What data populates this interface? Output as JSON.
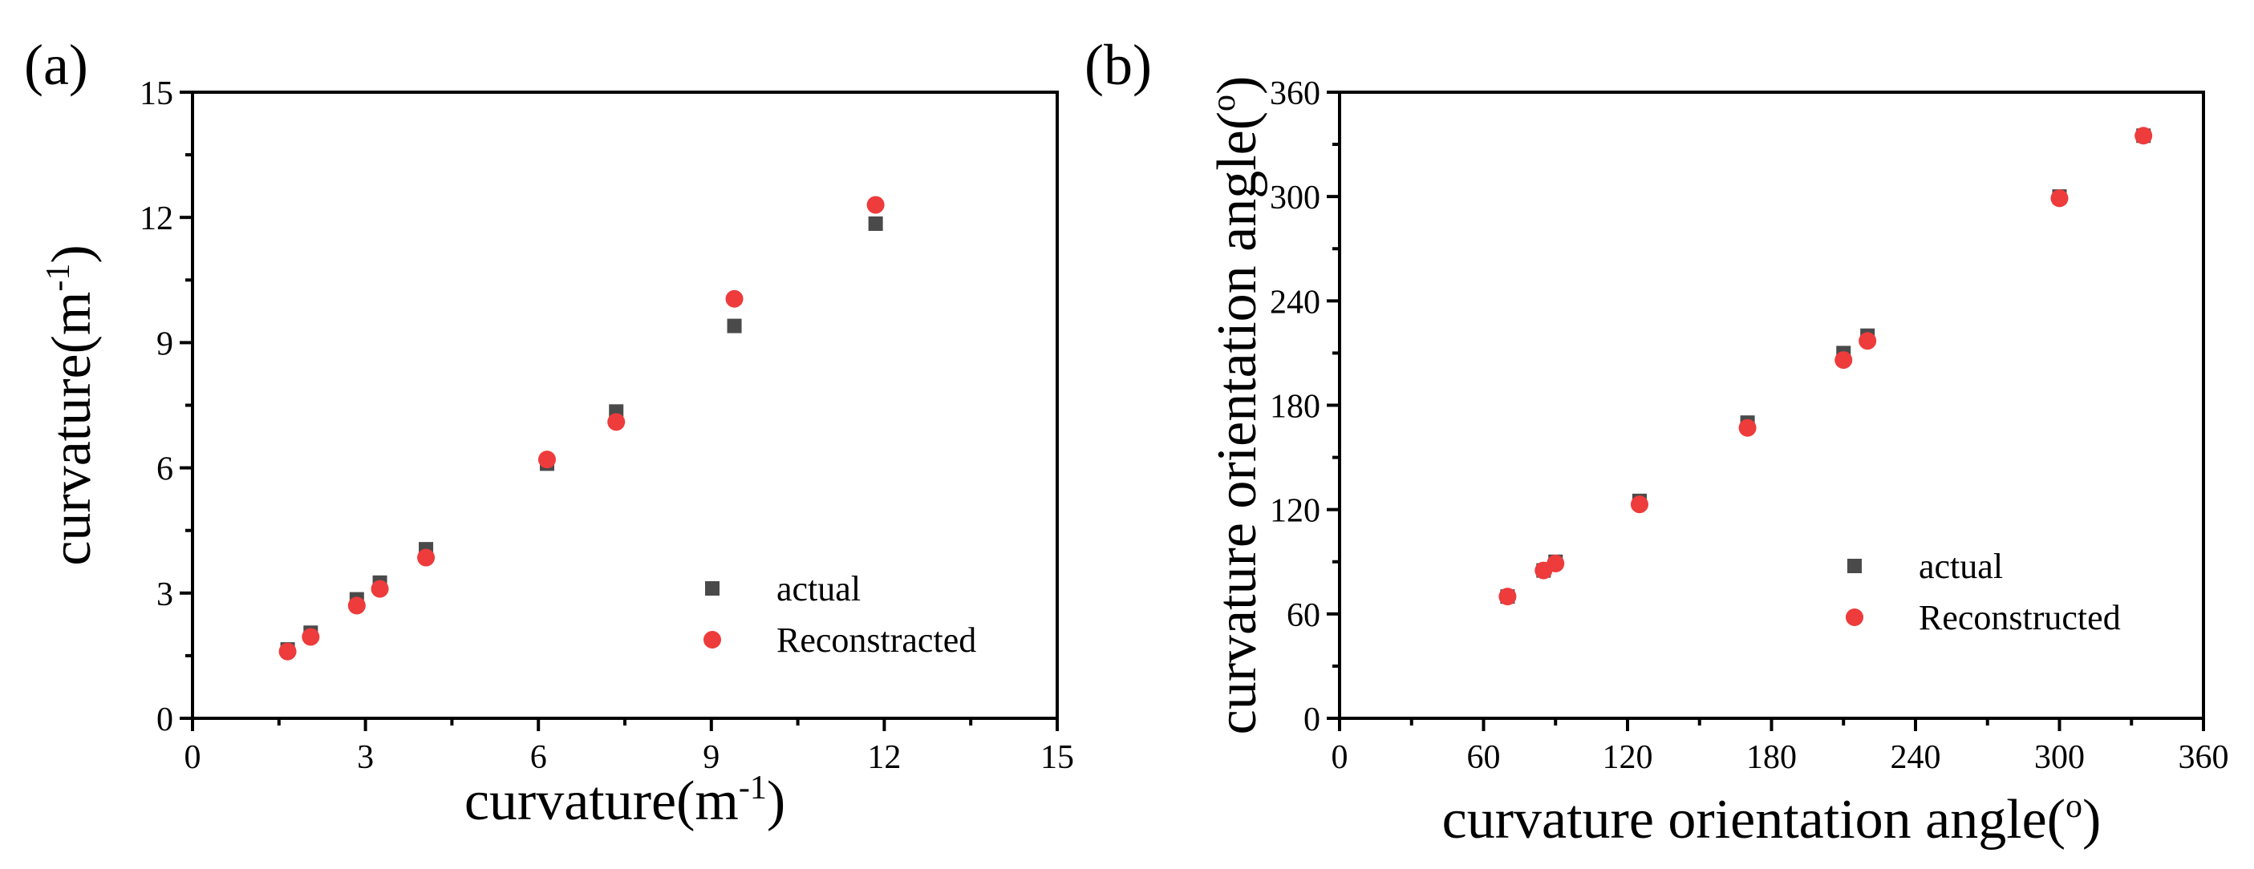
{
  "chart_data": [
    {
      "type": "scatter",
      "panel_label": "(a)",
      "xlabel": {
        "text": "curvature(m",
        "sup": "-1",
        "tail": ")"
      },
      "ylabel": {
        "text": "curvature(m",
        "sup": "-1",
        "tail": ")"
      },
      "xlim": [
        0,
        15
      ],
      "ylim": [
        0,
        15
      ],
      "xticks": [
        0,
        3,
        6,
        9,
        12,
        15
      ],
      "yticks": [
        0,
        3,
        6,
        9,
        12,
        15
      ],
      "legend_position": "lower-right",
      "series": [
        {
          "name": "actual",
          "marker": "square",
          "color": "#4a4a4a",
          "x": [
            1.65,
            2.05,
            2.85,
            3.25,
            4.05,
            6.15,
            7.35,
            9.4,
            11.85
          ],
          "y": [
            1.65,
            2.05,
            2.85,
            3.25,
            4.05,
            6.1,
            7.35,
            9.4,
            11.85
          ]
        },
        {
          "name": "Reconstracted",
          "marker": "circle",
          "color": "#ee3b3b",
          "x": [
            1.65,
            2.05,
            2.85,
            3.25,
            4.05,
            6.15,
            7.35,
            9.4,
            11.85
          ],
          "y": [
            1.6,
            1.95,
            2.7,
            3.1,
            3.85,
            6.2,
            7.1,
            10.05,
            12.3
          ]
        }
      ]
    },
    {
      "type": "scatter",
      "panel_label": "(b)",
      "xlabel": {
        "text": "curvature orientation angle(",
        "sup": "o",
        "tail": ")"
      },
      "ylabel": {
        "text": "curvature orientation angle(",
        "sup": "o",
        "tail": ")"
      },
      "xlim": [
        0,
        360
      ],
      "ylim": [
        0,
        360
      ],
      "xticks": [
        0,
        60,
        120,
        180,
        240,
        300,
        360
      ],
      "yticks": [
        0,
        60,
        120,
        180,
        240,
        300,
        360
      ],
      "legend_position": "lower-right",
      "series": [
        {
          "name": "actual",
          "marker": "square",
          "color": "#4a4a4a",
          "x": [
            70,
            85,
            90,
            125,
            170,
            210,
            220,
            300,
            335
          ],
          "y": [
            70,
            85,
            90,
            125,
            170,
            210,
            220,
            300,
            335
          ]
        },
        {
          "name": "Reconstructed",
          "marker": "circle",
          "color": "#ee3b3b",
          "x": [
            70,
            85,
            90,
            125,
            170,
            210,
            220,
            300,
            335
          ],
          "y": [
            70,
            85,
            89,
            123,
            167,
            206,
            217,
            299,
            335
          ]
        }
      ]
    }
  ]
}
